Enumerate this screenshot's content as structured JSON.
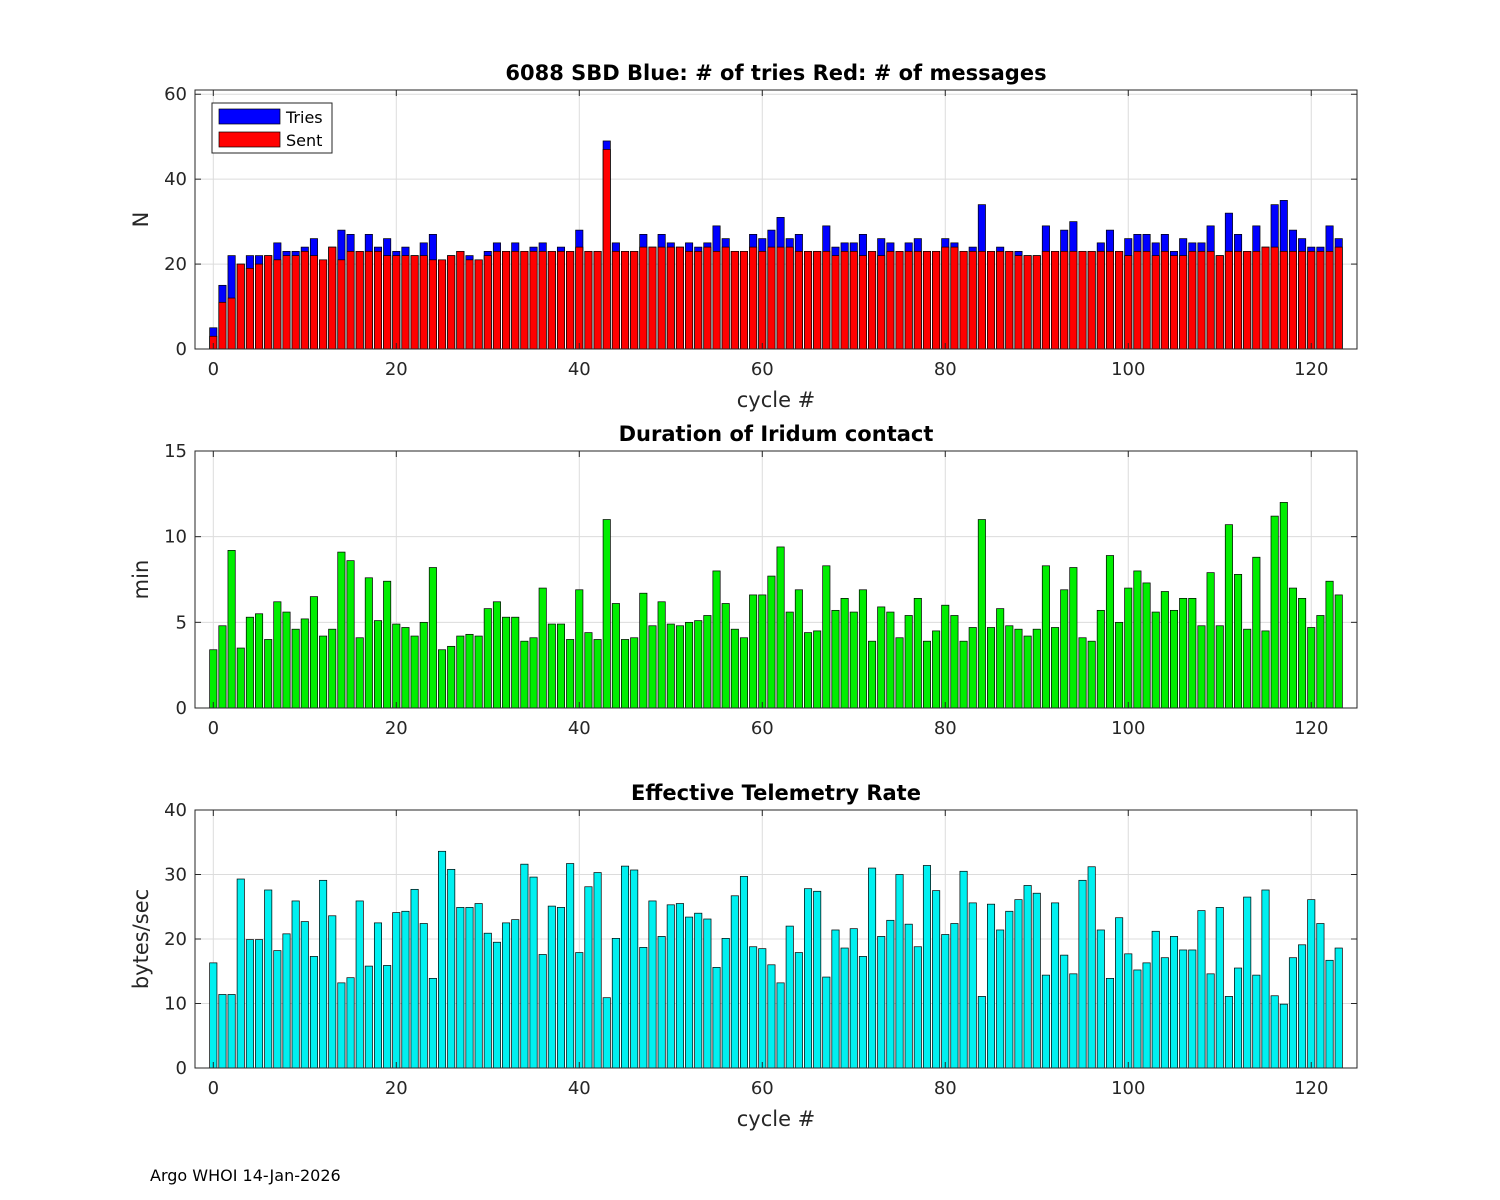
{
  "footer": "Argo WHOI 14-Jan-2026",
  "chart_data": [
    {
      "type": "bar",
      "title": "6088 SBD  Blue: # of tries   Red: # of messages",
      "xlabel": "cycle #",
      "ylabel": "N",
      "xlim": [
        -2,
        125
      ],
      "ylim": [
        0,
        61
      ],
      "xticks": [
        0,
        20,
        40,
        60,
        80,
        100,
        120
      ],
      "yticks": [
        0,
        20,
        40,
        60
      ],
      "grid": true,
      "legend": {
        "position": "top-left",
        "entries": [
          "Tries",
          "Sent"
        ]
      },
      "colors": {
        "Tries": "#0000ff",
        "Sent": "#ff0000"
      },
      "series": [
        {
          "name": "Tries",
          "values": [
            5,
            15,
            22,
            20,
            22,
            22,
            22,
            25,
            23,
            23,
            24,
            26,
            21,
            24,
            28,
            27,
            23,
            27,
            24,
            26,
            23,
            24,
            22,
            25,
            27,
            21,
            22,
            23,
            22,
            21,
            23,
            25,
            23,
            25,
            23,
            24,
            25,
            23,
            24,
            23,
            28,
            23,
            23,
            49,
            25,
            23,
            23,
            27,
            24,
            27,
            25,
            24,
            25,
            24,
            25,
            29,
            26,
            23,
            23,
            27,
            26,
            28,
            31,
            26,
            27,
            23,
            23,
            29,
            24,
            25,
            25,
            27,
            23,
            26,
            25,
            23,
            25,
            26,
            23,
            23,
            26,
            25,
            23,
            24,
            34,
            23,
            24,
            23,
            23,
            22,
            22,
            29,
            23,
            28,
            30,
            23,
            23,
            25,
            28,
            23,
            26,
            27,
            27,
            25,
            27,
            23,
            26,
            25,
            25,
            29,
            22,
            32,
            27,
            23,
            29,
            24,
            34,
            35,
            28,
            26,
            24,
            24,
            29,
            26
          ]
        },
        {
          "name": "Sent",
          "values": [
            3,
            11,
            12,
            20,
            19,
            20,
            22,
            21,
            22,
            22,
            23,
            22,
            21,
            24,
            21,
            23,
            23,
            23,
            23,
            22,
            22,
            22,
            22,
            22,
            21,
            21,
            22,
            23,
            21,
            21,
            22,
            23,
            23,
            23,
            23,
            23,
            23,
            23,
            23,
            23,
            24,
            23,
            23,
            47,
            23,
            23,
            23,
            24,
            24,
            24,
            24,
            24,
            23,
            23,
            24,
            23,
            24,
            23,
            23,
            24,
            23,
            24,
            24,
            24,
            23,
            23,
            23,
            23,
            22,
            23,
            23,
            22,
            23,
            22,
            23,
            23,
            23,
            23,
            23,
            23,
            24,
            24,
            23,
            23,
            23,
            23,
            23,
            23,
            22,
            22,
            22,
            23,
            23,
            23,
            23,
            23,
            23,
            23,
            23,
            23,
            22,
            23,
            23,
            22,
            23,
            22,
            22,
            23,
            23,
            23,
            22,
            23,
            23,
            23,
            23,
            24,
            24,
            23,
            23,
            23,
            23,
            23,
            23,
            24
          ]
        }
      ]
    },
    {
      "type": "bar",
      "title": "Duration of Iridum contact",
      "xlabel": "",
      "ylabel": "min",
      "xlim": [
        -2,
        125
      ],
      "ylim": [
        0,
        15
      ],
      "xticks": [
        0,
        20,
        40,
        60,
        80,
        100,
        120
      ],
      "yticks": [
        0,
        5,
        10,
        15
      ],
      "grid": true,
      "colors": {
        "bar": "#00ee00"
      },
      "series": [
        {
          "name": "Duration",
          "values": [
            3.4,
            4.8,
            9.2,
            3.5,
            5.3,
            5.5,
            4.0,
            6.2,
            5.6,
            4.6,
            5.2,
            6.5,
            4.2,
            4.6,
            9.1,
            8.6,
            4.1,
            7.6,
            5.1,
            7.4,
            4.9,
            4.7,
            4.2,
            5.0,
            8.2,
            3.4,
            3.6,
            4.2,
            4.3,
            4.2,
            5.8,
            6.2,
            5.3,
            5.3,
            3.9,
            4.1,
            7.0,
            4.9,
            4.9,
            4.0,
            6.9,
            4.4,
            4.0,
            11.0,
            6.1,
            4.0,
            4.1,
            6.7,
            4.8,
            6.2,
            4.9,
            4.8,
            5.0,
            5.1,
            5.4,
            8.0,
            6.1,
            4.6,
            4.1,
            6.6,
            6.6,
            7.7,
            9.4,
            5.6,
            6.9,
            4.4,
            4.5,
            8.3,
            5.7,
            6.4,
            5.6,
            6.9,
            3.9,
            5.9,
            5.6,
            4.1,
            5.4,
            6.4,
            3.9,
            4.5,
            6.0,
            5.4,
            3.9,
            4.7,
            11.0,
            4.7,
            5.8,
            4.8,
            4.6,
            4.2,
            4.6,
            8.3,
            4.7,
            6.9,
            8.2,
            4.1,
            3.9,
            5.7,
            8.9,
            5.0,
            7.0,
            8.0,
            7.3,
            5.6,
            6.8,
            5.7,
            6.4,
            6.4,
            4.8,
            7.9,
            4.8,
            10.7,
            7.8,
            4.6,
            8.8,
            4.5,
            11.2,
            12.0,
            7.0,
            6.4,
            4.7,
            5.4,
            7.4,
            6.6
          ]
        }
      ]
    },
    {
      "type": "bar",
      "title": "Effective Telemetry Rate",
      "xlabel": "cycle #",
      "ylabel": "bytes/sec",
      "xlim": [
        -2,
        125
      ],
      "ylim": [
        0,
        40
      ],
      "xticks": [
        0,
        20,
        40,
        60,
        80,
        100,
        120
      ],
      "yticks": [
        0,
        10,
        20,
        30,
        40
      ],
      "grid": true,
      "colors": {
        "bar": "#00f0f0"
      },
      "series": [
        {
          "name": "Rate",
          "values": [
            16.3,
            11.4,
            11.4,
            29.3,
            19.9,
            19.9,
            27.6,
            18.2,
            20.8,
            25.9,
            22.7,
            17.3,
            29.1,
            23.6,
            13.2,
            14.0,
            25.9,
            15.8,
            22.5,
            15.9,
            24.1,
            24.3,
            27.7,
            22.4,
            13.9,
            33.6,
            30.8,
            24.9,
            24.9,
            25.5,
            20.9,
            19.5,
            22.5,
            23.0,
            31.6,
            29.6,
            17.6,
            25.1,
            24.9,
            31.7,
            17.9,
            28.1,
            30.3,
            10.9,
            20.1,
            31.3,
            30.7,
            18.7,
            25.9,
            20.4,
            25.3,
            25.5,
            23.4,
            24.0,
            23.1,
            15.6,
            20.1,
            26.7,
            29.7,
            18.8,
            18.5,
            16.0,
            13.2,
            22.0,
            17.9,
            27.8,
            27.4,
            14.1,
            21.4,
            18.6,
            21.6,
            17.3,
            31.0,
            20.4,
            22.9,
            30.0,
            22.3,
            18.8,
            31.4,
            27.5,
            20.7,
            22.4,
            30.5,
            25.6,
            11.1,
            25.4,
            21.4,
            24.3,
            26.1,
            28.3,
            27.1,
            14.4,
            25.6,
            17.5,
            14.6,
            29.1,
            31.2,
            21.4,
            13.9,
            23.3,
            17.7,
            15.2,
            16.3,
            21.2,
            17.1,
            20.4,
            18.3,
            18.3,
            24.4,
            14.6,
            24.9,
            11.1,
            15.5,
            26.5,
            14.4,
            27.6,
            11.2,
            9.9,
            17.1,
            19.1,
            26.1,
            22.4,
            16.7,
            18.6
          ]
        }
      ]
    }
  ]
}
